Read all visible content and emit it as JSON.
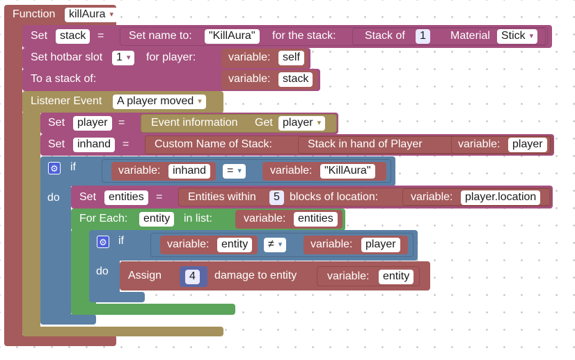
{
  "function": {
    "label": "Function",
    "name": "killAura"
  },
  "set_stack": {
    "set_label": "Set",
    "var_name": "stack",
    "eq": "=",
    "set_name_label": "Set name to:",
    "name_value": "\"KillAura\"",
    "for_stack_label": "for the stack:",
    "stack_of_label": "Stack of",
    "stack_count": "1",
    "material_label": "Material",
    "material_value": "Stick"
  },
  "hotbar": {
    "label": "Set hotbar slot",
    "slot": "1",
    "for_player_label": "for player:",
    "variable_label": "variable:",
    "player_var": "self",
    "to_stack_label": "To a stack of:",
    "stack_var": "stack"
  },
  "listener": {
    "label": "Listener Event",
    "event": "A player moved"
  },
  "set_player": {
    "set_label": "Set",
    "var_name": "player",
    "eq": "=",
    "event_info_label": "Event information",
    "get_label": "Get",
    "get_value": "player"
  },
  "set_inhand": {
    "set_label": "Set",
    "var_name": "inhand",
    "eq": "=",
    "custom_name_label": "Custom Name of Stack:",
    "stack_in_hand_label": "Stack in hand of Player",
    "variable_label": "variable:",
    "player_var": "player"
  },
  "if1": {
    "if_label": "if",
    "do_label": "do",
    "variable_label": "variable:",
    "left_var": "inhand",
    "operator": "=",
    "right_var": "\"KillAura\""
  },
  "set_entities": {
    "set_label": "Set",
    "var_name": "entities",
    "eq": "=",
    "within_label": "Entities within",
    "distance": "5",
    "blocks_label": "blocks of location:",
    "variable_label": "variable:",
    "location_var": "player.location"
  },
  "foreach": {
    "label": "For Each:",
    "item_var": "entity",
    "in_list_label": "in list:",
    "variable_label": "variable:",
    "list_var": "entities"
  },
  "if2": {
    "if_label": "if",
    "do_label": "do",
    "variable_label": "variable:",
    "left_var": "entity",
    "operator": "≠",
    "right_var": "player"
  },
  "assign": {
    "label": "Assign",
    "damage": "4",
    "damage_label": "damage to entity",
    "variable_label": "variable:",
    "entity_var": "entity"
  }
}
